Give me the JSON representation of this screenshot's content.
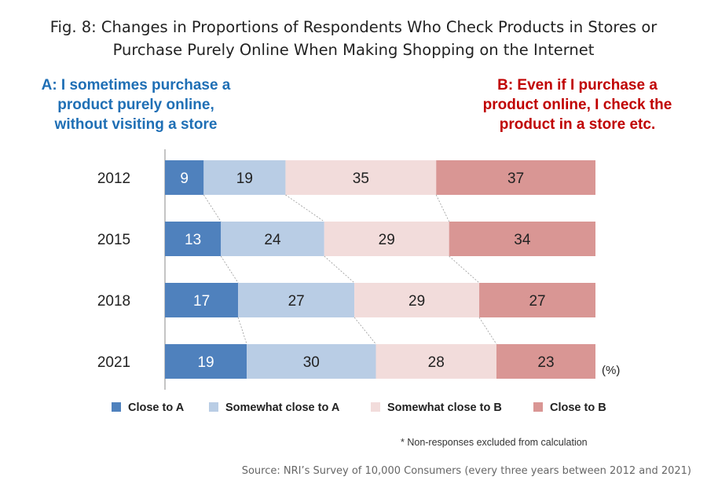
{
  "title": {
    "line1": "Fig. 8: Changes in Proportions of Respondents Who Check Products in Stores or",
    "line2": "Purchase Purely Online When Making Shopping on the Internet"
  },
  "side_a": {
    "line1": "A: I sometimes purchase a",
    "line2": "product purely online,",
    "line3": "without visiting a store",
    "color": "#1f6fb5"
  },
  "side_b": {
    "line1": "B: Even if I purchase a",
    "line2": "product online, I check the",
    "line3": "product in a store etc.",
    "color": "#c00000"
  },
  "chart_data": {
    "type": "bar",
    "orientation": "horizontal",
    "stacked": true,
    "normalized": true,
    "categories": [
      "2012",
      "2015",
      "2018",
      "2021"
    ],
    "series": [
      {
        "name": "Close to A",
        "values": [
          9,
          13,
          17,
          19
        ],
        "color": "#4f81bd",
        "label_color": "#ffffff"
      },
      {
        "name": "Somewhat close to A",
        "values": [
          19,
          24,
          27,
          30
        ],
        "color": "#b9cde5",
        "label_color": "#222222"
      },
      {
        "name": "Somewhat close to B",
        "values": [
          35,
          29,
          29,
          28
        ],
        "color": "#f2dcdb",
        "label_color": "#222222"
      },
      {
        "name": "Close to B",
        "values": [
          37,
          34,
          27,
          23
        ],
        "color": "#d99694",
        "label_color": "#222222"
      }
    ],
    "unit_label": "(%)",
    "legend_position": "bottom",
    "connector_lines": true,
    "grid": false
  },
  "footnote": "* Non-responses excluded from calculation",
  "source": "Source: NRI’s Survey of 10,000 Consumers (every three years between 2012 and 2021)"
}
